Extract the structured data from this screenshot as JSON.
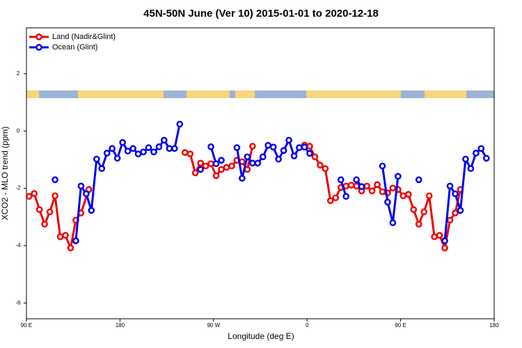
{
  "chart_data": {
    "type": "line",
    "title": "45N-50N June (Ver 10)   2015-01-01 to 2020-12-18",
    "x_label": "Longitude (deg E)",
    "y_label": "XCO2 - MLO trend (ppm)",
    "xlim": [
      90,
      540
    ],
    "xticks": [
      {
        "value": 90,
        "label": "90 E"
      },
      180,
      {
        "value": 270,
        "label": "90 W"
      },
      {
        "value": 360,
        "label": "0"
      },
      {
        "value": 450,
        "label": "90 E"
      },
      {
        "value": 540,
        "label": "180"
      }
    ],
    "ylim": [
      -6.55,
      3.6
    ],
    "yticks": [
      2,
      0,
      -2,
      -4,
      -6
    ],
    "legend": "top-left",
    "series": [
      {
        "name": "Land (Nadir&Glint)",
        "color": "#ee0000",
        "x": [
          92.5,
          97.5,
          102.5,
          107.5,
          112.5,
          117.5,
          122.5,
          127.5,
          132.5,
          137.5,
          142.5,
          150,
          155,
          242.5,
          247.5,
          252.5,
          257.5,
          262.5,
          267.5,
          272.5,
          277.5,
          282.5,
          287.5,
          292.5,
          297.5,
          302.5,
          307.5,
          312.5,
          357.5,
          362.5,
          367.5,
          372.5,
          377.5,
          382.5,
          387.5,
          392.5,
          397.5,
          402.5,
          407.5,
          412.5,
          417.5,
          422.5,
          427.5,
          432.5,
          437.5,
          442.5,
          447.5,
          452.5,
          457.5,
          462.5,
          467.5,
          472.5,
          477.5,
          482.5,
          487.5,
          492.5,
          497.5,
          502.5,
          507.5
        ],
        "values": [
          -2.28,
          -2.18,
          -2.74,
          -3.25,
          -2.82,
          -2.26,
          -3.69,
          -3.64,
          -4.08,
          -3.11,
          -2.86,
          -2.04,
          null,
          -0.75,
          -0.8,
          -1.46,
          -1.12,
          -1.22,
          -1.14,
          -1.56,
          -1.34,
          -1.27,
          -1.22,
          -1.02,
          -1.07,
          -1.34,
          -0.53,
          null,
          -0.49,
          -0.53,
          -0.9,
          -1.19,
          -1.31,
          -2.43,
          -2.33,
          -1.97,
          -1.92,
          -1.89,
          -1.92,
          -2.09,
          -1.92,
          -2.09,
          -1.87,
          -2.12,
          -2.16,
          -1.99,
          -2.04,
          -2.26,
          -2.21,
          -2.74,
          -3.25,
          -2.82,
          -2.26,
          -3.69,
          -3.64,
          -4.08,
          -3.11,
          -2.86,
          -2.04
        ]
      },
      {
        "name": "Ocean (Glint)",
        "color": "#0000ee",
        "x": [
          117.5,
          122.5,
          137.5,
          142.5,
          147.5,
          152.5,
          157.5,
          162.5,
          167.5,
          172.5,
          177.5,
          182.5,
          187.5,
          192.5,
          197.5,
          202.5,
          207.5,
          212.5,
          217.5,
          222.5,
          227.5,
          232.5,
          237.5,
          240,
          257.5,
          260,
          267.5,
          272.5,
          277.5,
          280,
          292.5,
          297.5,
          302.5,
          307.5,
          312.5,
          317.5,
          322.5,
          327.5,
          332.5,
          337.5,
          342.5,
          347.5,
          352.5,
          357.5,
          362.5,
          365,
          392.5,
          397.5,
          400,
          407.5,
          412.5,
          415,
          432.5,
          437.5,
          442.5,
          447.5,
          450,
          467.5,
          470,
          492.5,
          497.5,
          502.5,
          507.5,
          512.5,
          517.5,
          522.5,
          527.5,
          532.5
        ],
        "values": [
          -1.7,
          null,
          -3.83,
          -1.92,
          -2.19,
          -2.77,
          -0.98,
          -1.31,
          -0.77,
          -0.61,
          -0.95,
          -0.4,
          -0.7,
          -0.61,
          -0.8,
          -0.73,
          -0.58,
          -0.73,
          -0.55,
          -0.32,
          -0.61,
          -0.61,
          0.24,
          null,
          -1.34,
          null,
          -0.55,
          -1.14,
          -1.02,
          null,
          -0.58,
          -1.65,
          -0.9,
          -1.12,
          -1.12,
          -0.9,
          -0.5,
          -0.56,
          -0.98,
          -0.68,
          -0.32,
          -0.87,
          -0.58,
          -0.56,
          -0.78,
          null,
          -1.7,
          -2.28,
          null,
          -1.7,
          -1.94,
          null,
          -1.22,
          -2.48,
          -3.2,
          -1.58,
          null,
          -1.7,
          null,
          -3.83,
          -1.92,
          -2.19,
          -2.77,
          -0.98,
          -1.31,
          -0.77,
          -0.61,
          -0.95
        ]
      }
    ]
  }
}
